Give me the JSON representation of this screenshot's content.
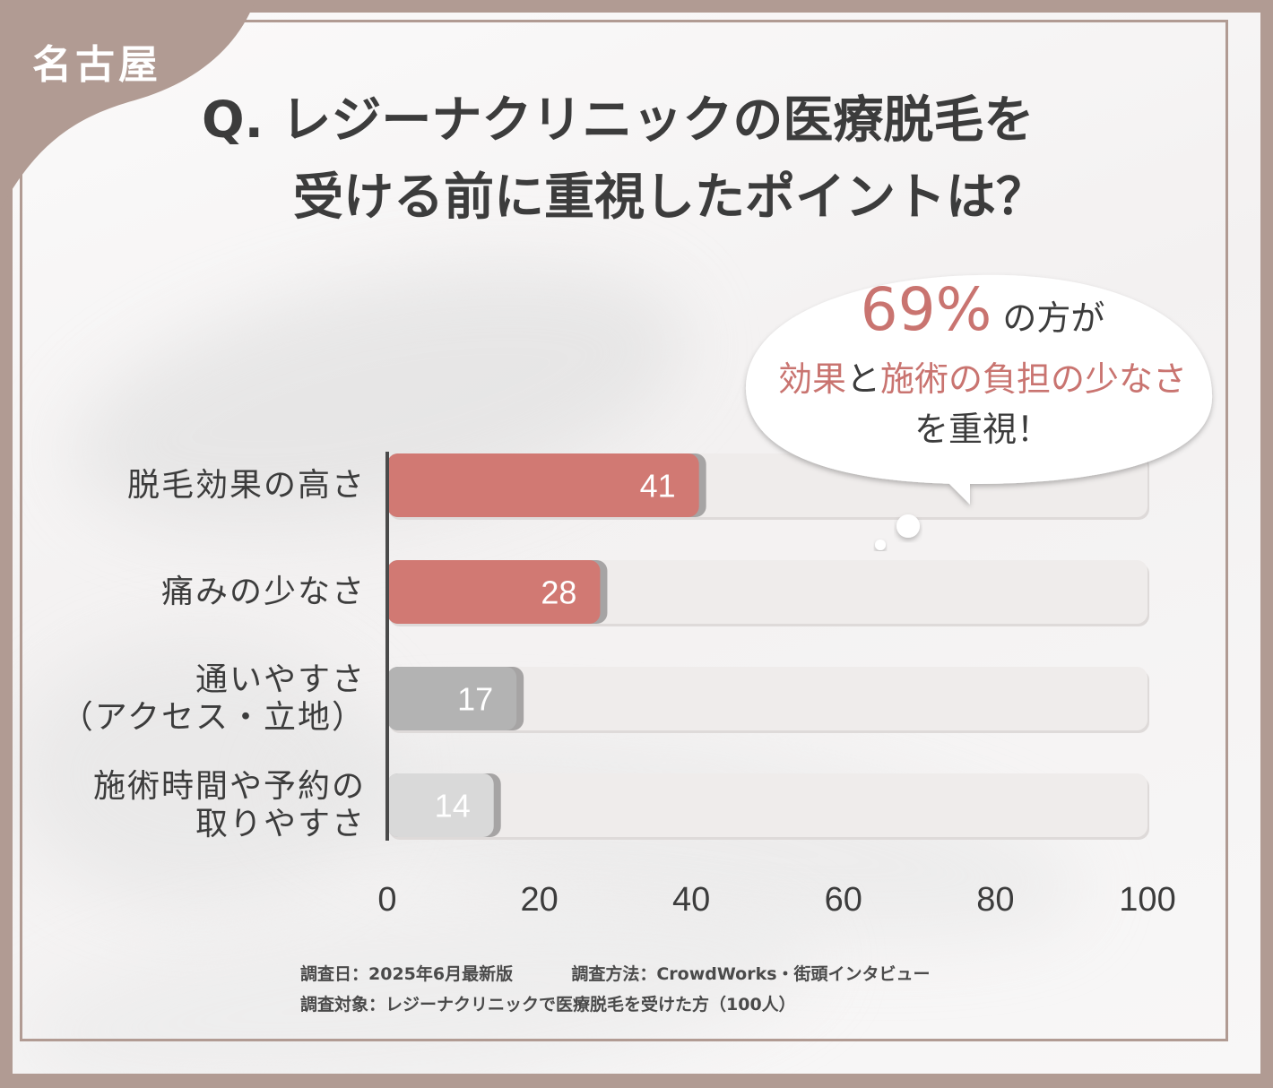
{
  "region_label": "名古屋",
  "title": {
    "line1": "Q. レジーナクリニックの医療脱毛を",
    "line2": "受ける前に重視したポイントは？"
  },
  "callout": {
    "percent": "69%",
    "line1_suffix": "の方が",
    "accent1": "効果",
    "connector": "と",
    "accent2": "施術の負担の少なさ",
    "line3": "を重視！"
  },
  "chart_data": {
    "type": "bar",
    "orientation": "horizontal",
    "categories": [
      [
        "脱毛効果の高さ"
      ],
      [
        "痛みの少なさ"
      ],
      [
        "通いやすさ",
        "（アクセス・立地）"
      ],
      [
        "施術時間や予約の",
        "取りやすさ"
      ]
    ],
    "values": [
      41,
      28,
      17,
      14
    ],
    "xlim": [
      0,
      100
    ],
    "xticks": [
      0,
      20,
      40,
      60,
      80,
      100
    ],
    "colors": [
      "#d17973",
      "#d17973",
      "#b3b3b3",
      "#d9d9d9"
    ],
    "track_color": "#efeceb"
  },
  "footer": {
    "date": "調査日：2025年6月最新版",
    "method": "調査方法：CrowdWorks・街頭インタビュー",
    "target": "調査対象：レジーナクリニックで医療脱毛を受けた方（100人）"
  }
}
